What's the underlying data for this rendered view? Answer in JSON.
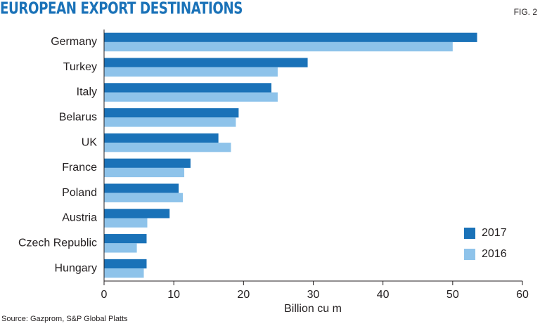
{
  "chart_data": {
    "type": "hbar",
    "title": "EUROPEAN EXPORT DESTINATIONS",
    "figure_label": "FIG. 2",
    "source": "Source: Gazprom, S&P Global Platts",
    "x_label": "Billion cu m",
    "categories": [
      "Germany",
      "Turkey",
      "Italy",
      "Belarus",
      "UK",
      "France",
      "Poland",
      "Austria",
      "Czech Republic",
      "Hungary"
    ],
    "series": [
      {
        "name": "2017",
        "color": "#1a72b8",
        "values": [
          53.5,
          29.2,
          24.0,
          19.3,
          16.4,
          12.4,
          10.7,
          9.4,
          6.1,
          6.1
        ]
      },
      {
        "name": "2016",
        "color": "#8ec3ea",
        "values": [
          50.0,
          24.9,
          24.9,
          18.9,
          18.2,
          11.5,
          11.3,
          6.2,
          4.7,
          5.7
        ]
      }
    ],
    "xlim": [
      0,
      60
    ],
    "xticks": [
      0,
      10,
      20,
      30,
      40,
      50,
      60
    ],
    "legend": "lower right",
    "grid": false
  }
}
